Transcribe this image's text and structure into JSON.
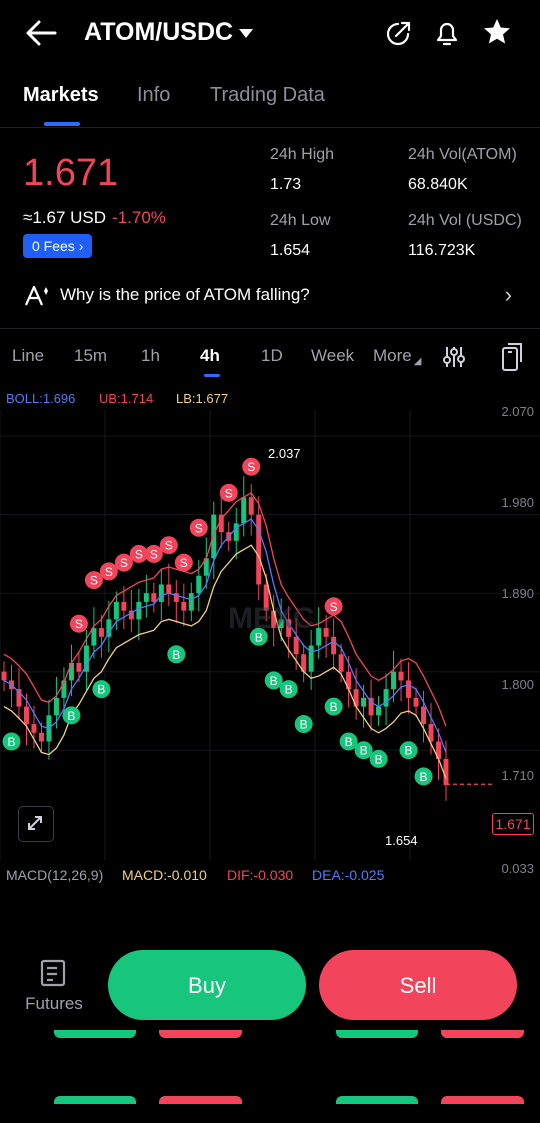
{
  "header": {
    "title": "ATOM/USDC",
    "icons": [
      "back-arrow-icon",
      "dropdown-caret-icon",
      "share-icon",
      "bell-icon",
      "star-icon"
    ]
  },
  "tabs": [
    {
      "label": "Markets",
      "active": true
    },
    {
      "label": "Info",
      "active": false
    },
    {
      "label": "Trading Data",
      "active": false
    }
  ],
  "ticker": {
    "last_price": "1.671",
    "usd_equiv": "≈1.67 USD",
    "change_pct": "-1.70%",
    "fees_label": "0 Fees",
    "high_label": "24h High",
    "high_value": "1.73",
    "low_label": "24h Low",
    "low_value": "1.654",
    "vol_base_label": "24h Vol(ATOM)",
    "vol_base_value": "68.840K",
    "vol_quote_label": "24h Vol (USDC)",
    "vol_quote_value": "116.723K"
  },
  "insight": {
    "text": "Why is the price of ATOM falling?"
  },
  "timeframes": {
    "items": [
      "Line",
      "15m",
      "1h",
      "4h",
      "1D",
      "Week",
      "More"
    ],
    "active": "4h"
  },
  "indicators": {
    "boll": "BOLL:1.696",
    "ub": "UB:1.714",
    "lb": "LB:1.677",
    "macd_params": "MACD(12,26,9)",
    "macd": "MACD:-0.010",
    "dif": "DIF:-0.030",
    "dea": "DEA:-0.025"
  },
  "chart_data": {
    "type": "candlestick",
    "y_ticks": [
      "2.070",
      "1.980",
      "1.890",
      "1.800",
      "1.710"
    ],
    "ylim": [
      1.63,
      2.1
    ],
    "macd_tick": "0.033",
    "high_marker": "2.037",
    "low_marker": "1.654",
    "current_price_tag": "1.671",
    "watermark": "MEXC",
    "closes": [
      1.79,
      1.78,
      1.76,
      1.74,
      1.73,
      1.72,
      1.75,
      1.77,
      1.79,
      1.81,
      1.8,
      1.83,
      1.85,
      1.84,
      1.86,
      1.88,
      1.87,
      1.86,
      1.88,
      1.89,
      1.88,
      1.9,
      1.89,
      1.88,
      1.87,
      1.89,
      1.91,
      1.93,
      1.98,
      1.96,
      1.95,
      1.97,
      2.0,
      1.98,
      1.9,
      1.87,
      1.85,
      1.86,
      1.84,
      1.82,
      1.8,
      1.83,
      1.85,
      1.84,
      1.82,
      1.8,
      1.78,
      1.76,
      1.77,
      1.75,
      1.76,
      1.78,
      1.8,
      1.79,
      1.77,
      1.76,
      1.74,
      1.72,
      1.7,
      1.67
    ],
    "colors": {
      "up": "#17c57c",
      "down": "#f2455c",
      "boll": "#4f7bff",
      "ub": "#f2455c",
      "lb": "#f0d27a"
    }
  },
  "signals": {
    "sell_label": "S",
    "buy_label": "B"
  },
  "bottom": {
    "futures_label": "Futures",
    "buy_label": "Buy",
    "sell_label": "Sell"
  }
}
